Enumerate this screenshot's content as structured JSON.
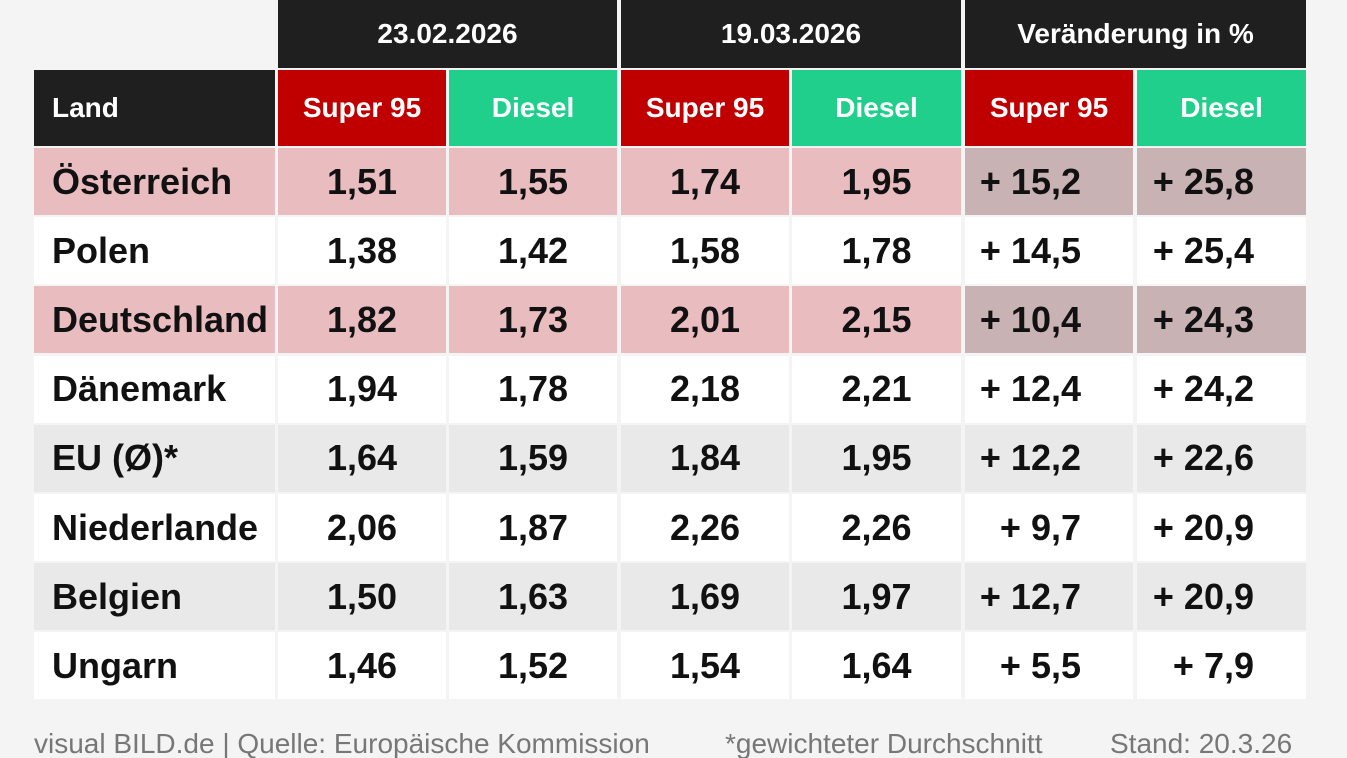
{
  "table": {
    "groups": [
      "23.02.2026",
      "19.03.2026",
      "Veränderung in %"
    ],
    "columns": [
      "Land",
      "Super 95",
      "Diesel",
      "Super 95",
      "Diesel",
      "Super 95",
      "Diesel"
    ],
    "rows": [
      [
        "Österreich",
        "1,51",
        "1,55",
        "1,74",
        "1,95",
        "+ 15,2",
        "+ 25,8"
      ],
      [
        "Polen",
        "1,38",
        "1,42",
        "1,58",
        "1,78",
        "+ 14,5",
        "+ 25,4"
      ],
      [
        "Deutschland",
        "1,82",
        "1,73",
        "2,01",
        "2,15",
        "+ 10,4",
        "+ 24,3"
      ],
      [
        "Dänemark",
        "1,94",
        "1,78",
        "2,18",
        "2,21",
        "+ 12,4",
        "+ 24,2"
      ],
      [
        "EU (Ø)*",
        "1,64",
        "1,59",
        "1,84",
        "1,95",
        "+ 12,2",
        "+ 22,6"
      ],
      [
        "Niederlande",
        "2,06",
        "1,87",
        "2,26",
        "2,26",
        "+ 9,7",
        "+ 20,9"
      ],
      [
        "Belgien",
        "1,50",
        "1,63",
        "1,69",
        "1,97",
        "+ 12,7",
        "+ 20,9"
      ],
      [
        "Ungarn",
        "1,46",
        "1,52",
        "1,54",
        "1,64",
        "+ 5,5",
        "+ 7,9"
      ]
    ]
  },
  "footer": [
    "visual BILD.de | Quelle: Europäische Kommission",
    "*gewichteter Durchschnitt",
    "Stand: 20.3.26"
  ]
}
